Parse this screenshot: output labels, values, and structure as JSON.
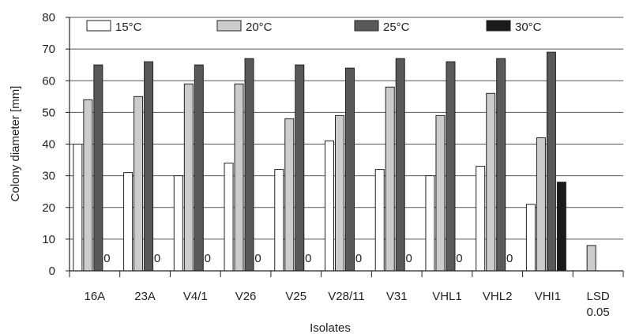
{
  "chart_data": {
    "type": "bar",
    "xlabel": "Isolates",
    "ylabel": "Colony diameter [mm]",
    "ylim": [
      0,
      80
    ],
    "yticks": [
      "0",
      "10",
      "20",
      "30",
      "40",
      "50",
      "60",
      "70",
      "80"
    ],
    "grid": true,
    "legend_position": "top",
    "categories": [
      [
        "16A"
      ],
      [
        "23A"
      ],
      [
        "V4/1"
      ],
      [
        "V26"
      ],
      [
        "V25"
      ],
      [
        "V28/11"
      ],
      [
        "V31"
      ],
      [
        "VHL1"
      ],
      [
        "VHL2"
      ],
      [
        "VHI1"
      ],
      [
        "LSD",
        "0.05"
      ]
    ],
    "series": [
      {
        "name": "15°C",
        "color": "#ffffff",
        "values": [
          40,
          31,
          30,
          34,
          32,
          41,
          32,
          30,
          33,
          21,
          null
        ]
      },
      {
        "name": "20°C",
        "color": "#cccccc",
        "values": [
          54,
          55,
          59,
          59,
          48,
          49,
          58,
          49,
          56,
          42,
          8
        ]
      },
      {
        "name": "25°C",
        "color": "#595959",
        "values": [
          65,
          66,
          65,
          67,
          65,
          64,
          67,
          66,
          67,
          69,
          null
        ]
      },
      {
        "name": "30°C",
        "color": "#1a1a1a",
        "values": [
          0,
          0,
          0,
          0,
          0,
          0,
          0,
          0,
          0,
          28,
          null
        ]
      }
    ],
    "zero_labels": [
      "0",
      "0",
      "0",
      "0",
      "0",
      "0",
      "0",
      "0",
      "0"
    ]
  }
}
